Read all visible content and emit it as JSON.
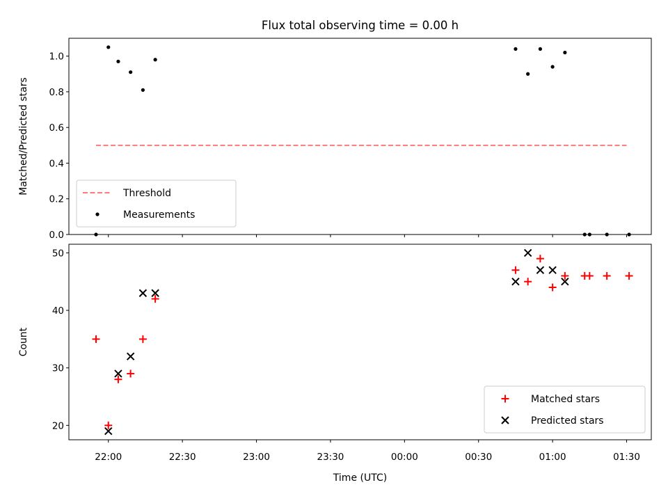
{
  "chart_data": [
    {
      "type": "scatter",
      "title": "Flux total observing time = 0.00 h",
      "xlabel": "",
      "ylabel": "Matched/Predicted stars",
      "ylim": [
        0.0,
        1.1
      ],
      "yticks": [
        "0.0",
        "0.2",
        "0.4",
        "0.6",
        "0.8",
        "1.0"
      ],
      "ytick_values": [
        0.0,
        0.2,
        0.4,
        0.6,
        0.8,
        1.0
      ],
      "series": [
        {
          "name": "Threshold",
          "kind": "line",
          "style": "dashed",
          "color": "#ff7777",
          "points": [
            [
              "21:55",
              0.5
            ],
            [
              "01:30",
              0.5
            ]
          ]
        },
        {
          "name": "Measurements",
          "kind": "scatter",
          "marker": "dot",
          "color": "#000000",
          "points": [
            [
              "21:55",
              0.0
            ],
            [
              "22:00",
              1.05
            ],
            [
              "22:04",
              0.97
            ],
            [
              "22:09",
              0.91
            ],
            [
              "22:14",
              0.81
            ],
            [
              "22:19",
              0.98
            ],
            [
              "00:45",
              1.04
            ],
            [
              "00:50",
              0.9
            ],
            [
              "00:55",
              1.04
            ],
            [
              "01:00",
              0.94
            ],
            [
              "01:05",
              1.02
            ],
            [
              "01:13",
              0.0
            ],
            [
              "01:15",
              0.0
            ],
            [
              "01:22",
              0.0
            ],
            [
              "01:31",
              0.0
            ]
          ]
        }
      ],
      "legend": {
        "position": "lower-left"
      },
      "grid": false
    },
    {
      "type": "scatter",
      "title": "",
      "xlabel": "Time (UTC)",
      "ylabel": "Count",
      "ylim": [
        17.5,
        51.5
      ],
      "yticks": [
        "20",
        "30",
        "40",
        "50"
      ],
      "ytick_values": [
        20,
        30,
        40,
        50
      ],
      "series": [
        {
          "name": "Matched stars",
          "kind": "scatter",
          "marker": "plus",
          "color": "#ff0000",
          "points": [
            [
              "21:55",
              35
            ],
            [
              "22:00",
              20
            ],
            [
              "22:04",
              28
            ],
            [
              "22:09",
              29
            ],
            [
              "22:14",
              35
            ],
            [
              "22:19",
              42
            ],
            [
              "00:45",
              47
            ],
            [
              "00:50",
              45
            ],
            [
              "00:55",
              49
            ],
            [
              "01:00",
              44
            ],
            [
              "01:05",
              46
            ],
            [
              "01:13",
              46
            ],
            [
              "01:15",
              46
            ],
            [
              "01:22",
              46
            ],
            [
              "01:31",
              46
            ]
          ]
        },
        {
          "name": "Predicted stars",
          "kind": "scatter",
          "marker": "x",
          "color": "#000000",
          "points": [
            [
              "22:00",
              19
            ],
            [
              "22:04",
              29
            ],
            [
              "22:09",
              32
            ],
            [
              "22:14",
              43
            ],
            [
              "22:19",
              43
            ],
            [
              "00:45",
              45
            ],
            [
              "00:50",
              50
            ],
            [
              "00:55",
              47
            ],
            [
              "01:00",
              47
            ],
            [
              "01:05",
              45
            ]
          ]
        }
      ],
      "legend": {
        "position": "lower-right"
      },
      "grid": false
    }
  ],
  "x_axis": {
    "label": "Time (UTC)",
    "range": [
      "21:44",
      "01:40"
    ],
    "ticks": [
      "22:00",
      "22:30",
      "23:00",
      "23:30",
      "00:00",
      "00:30",
      "01:00",
      "01:30"
    ]
  }
}
